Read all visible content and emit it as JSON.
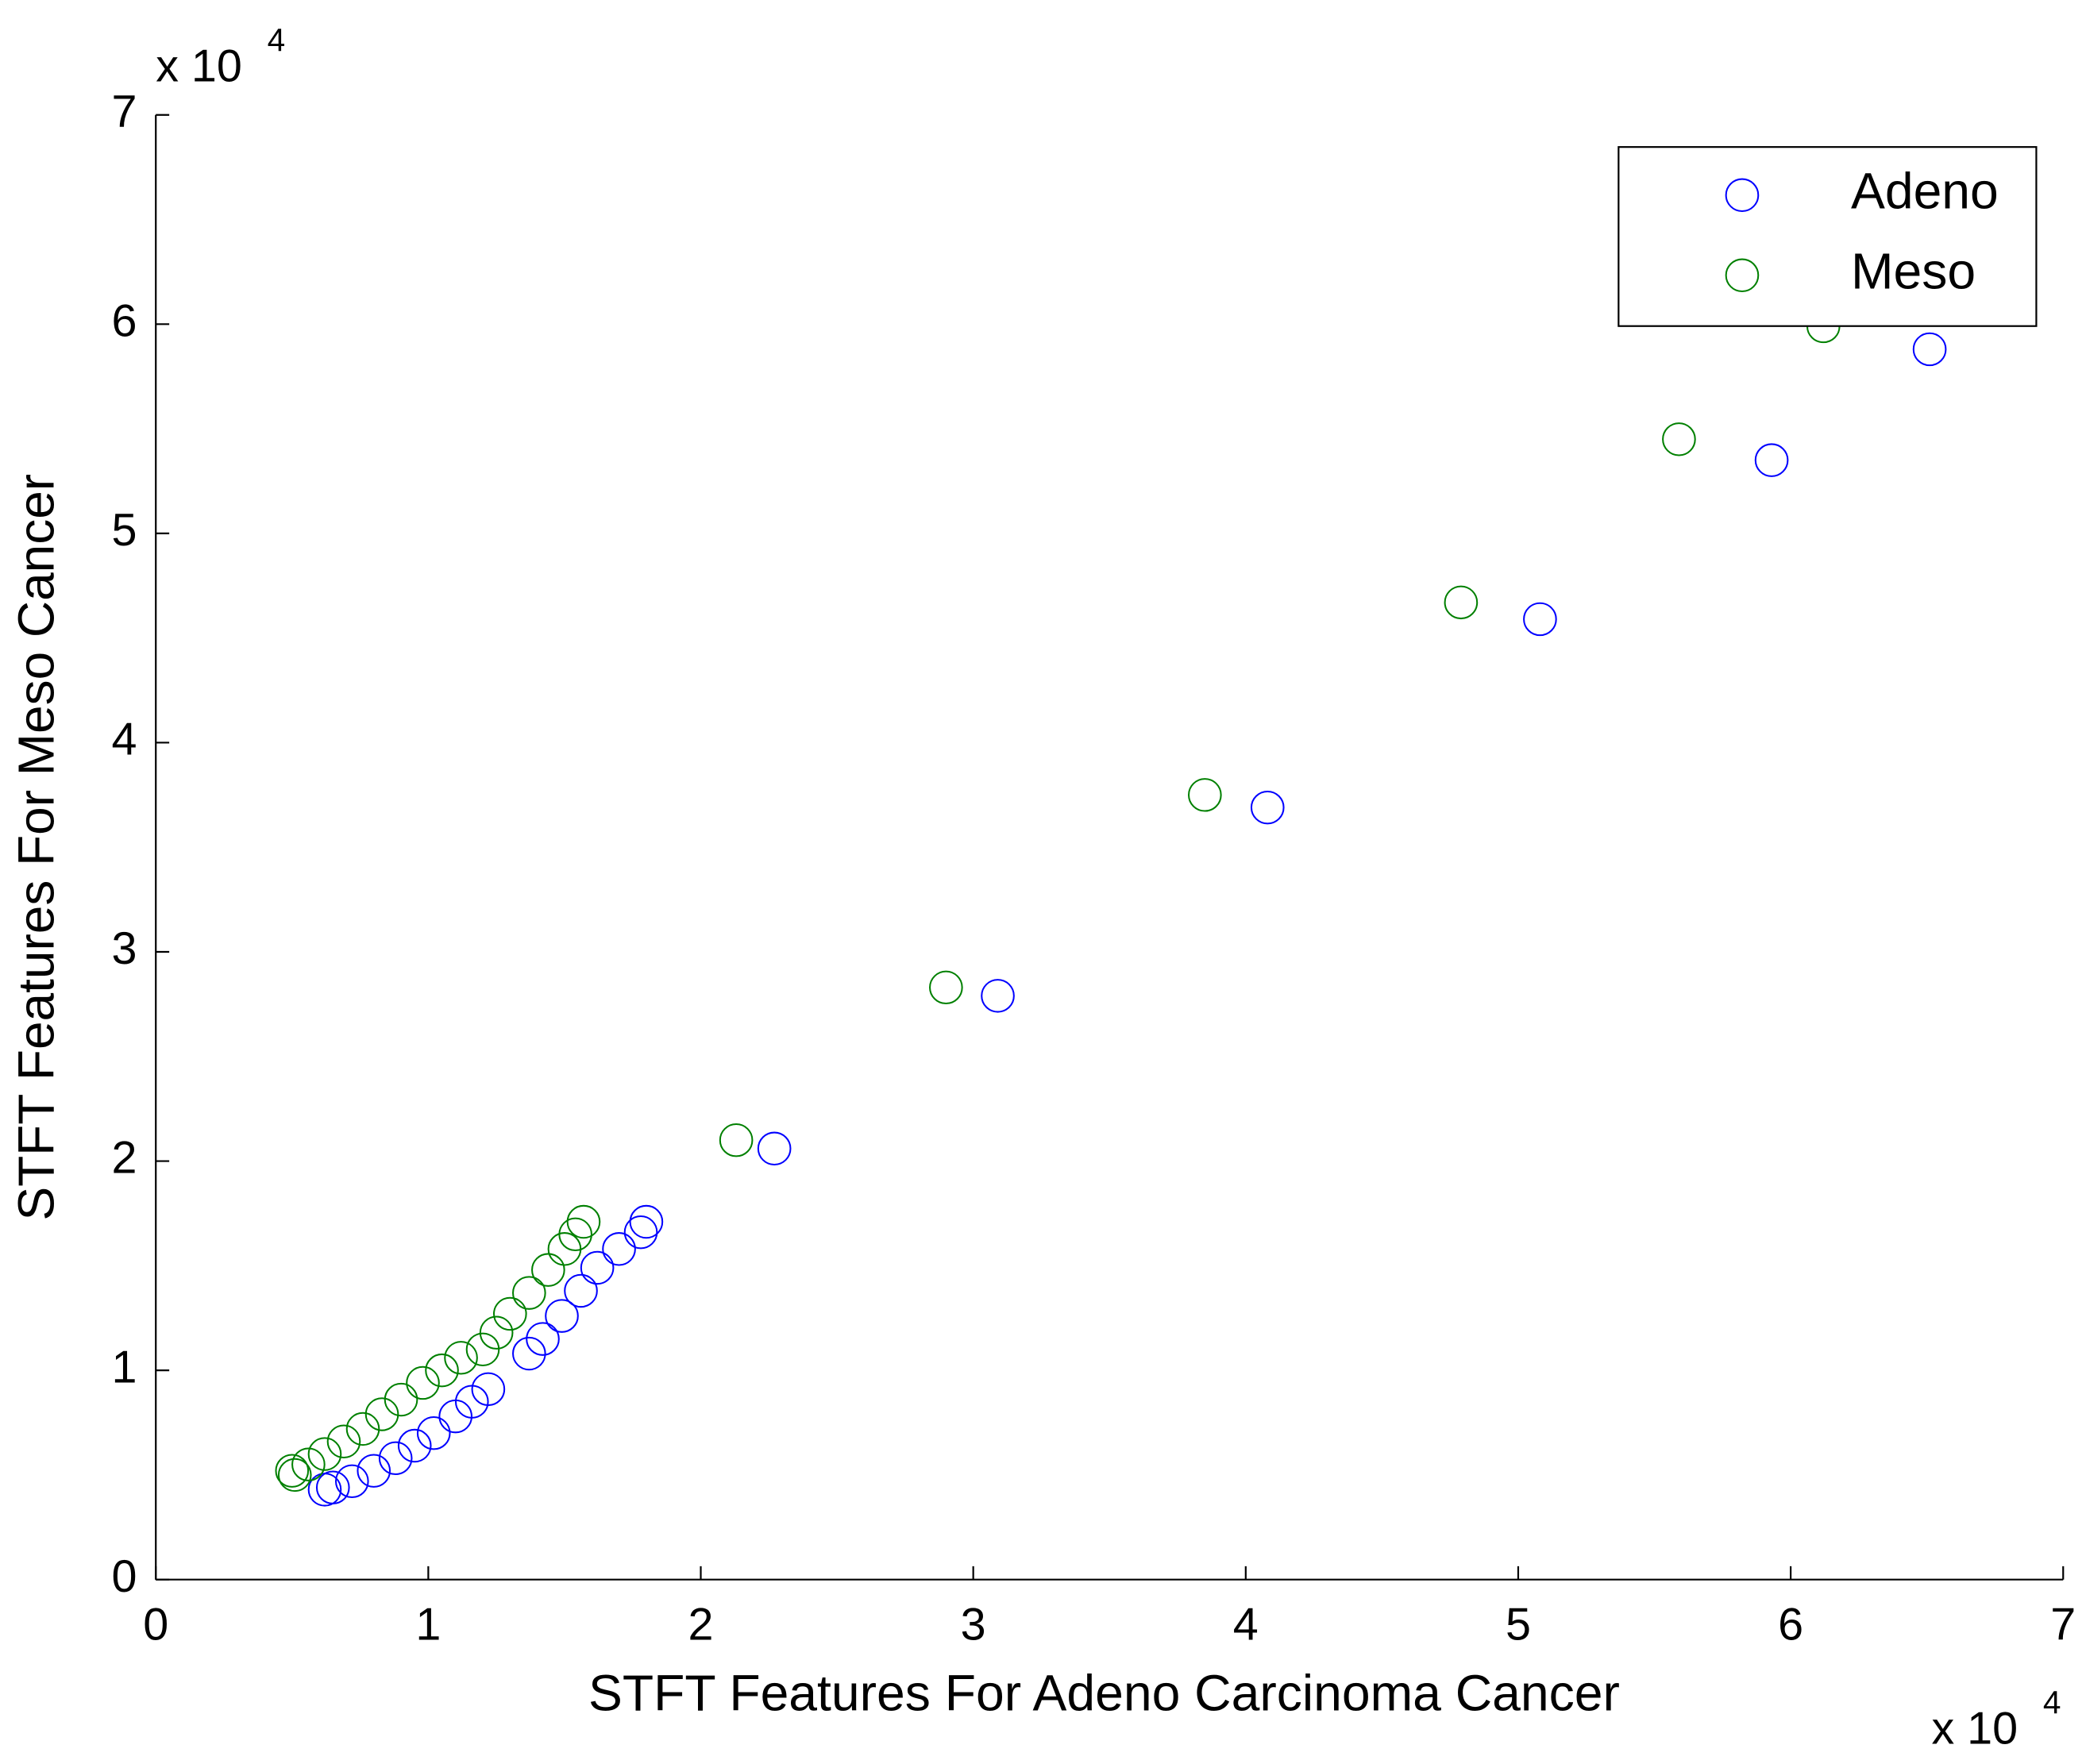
{
  "chart_data": {
    "type": "scatter",
    "x_label": "STFT Features For Adeno Carcinoma Cancer",
    "y_label": "STFT Features For Meso Cancer",
    "x_multiplier": "x 10",
    "x_multiplier_exp": "4",
    "y_multiplier": "x 10",
    "y_multiplier_exp": "4",
    "xlim": [
      0,
      7
    ],
    "ylim": [
      0,
      7
    ],
    "xticks": [
      0,
      1,
      2,
      3,
      4,
      5,
      6,
      7
    ],
    "yticks": [
      0,
      1,
      2,
      3,
      4,
      5,
      6,
      7
    ],
    "legend": "top-right",
    "series": [
      {
        "name": "Adeno",
        "color": "#0000ff",
        "x": [
          6.51,
          5.93,
          5.08,
          4.08,
          3.09,
          2.27,
          1.8,
          1.78,
          1.7,
          1.62,
          1.56,
          1.49,
          1.42,
          1.37,
          1.22,
          1.16,
          1.1,
          1.02,
          0.95,
          0.88,
          0.8,
          0.72,
          0.65,
          0.62
        ],
        "values": [
          5.88,
          5.35,
          4.59,
          3.69,
          2.79,
          2.06,
          1.71,
          1.66,
          1.58,
          1.49,
          1.38,
          1.26,
          1.15,
          1.08,
          0.91,
          0.85,
          0.78,
          0.7,
          0.64,
          0.58,
          0.52,
          0.47,
          0.44,
          0.43
        ]
      },
      {
        "name": "Meso",
        "color": "#008000",
        "x": [
          6.12,
          5.59,
          4.79,
          3.85,
          2.9,
          2.13,
          1.57,
          1.54,
          1.5,
          1.44,
          1.37,
          1.3,
          1.25,
          1.2,
          1.12,
          1.05,
          0.98,
          0.9,
          0.83,
          0.76,
          0.69,
          0.62,
          0.56,
          0.51,
          0.5
        ],
        "values": [
          5.99,
          5.45,
          4.67,
          3.75,
          2.83,
          2.1,
          1.71,
          1.65,
          1.58,
          1.48,
          1.37,
          1.27,
          1.18,
          1.1,
          1.06,
          1.0,
          0.94,
          0.86,
          0.79,
          0.72,
          0.66,
          0.6,
          0.55,
          0.5,
          0.52
        ]
      }
    ]
  }
}
